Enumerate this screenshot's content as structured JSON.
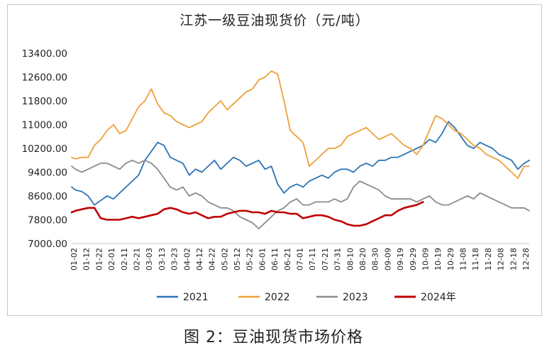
{
  "chart_data": {
    "type": "line",
    "title": "江苏一级豆油现货价（元/吨）",
    "xlabel": "",
    "ylabel": "",
    "ylim": [
      7000,
      13400
    ],
    "ytick_labels": [
      "13400.00",
      "12600.00",
      "11800.00",
      "11000.00",
      "10200.00",
      "9400.00",
      "8600.00",
      "7800.00",
      "7000.00"
    ],
    "ytick_values": [
      13400,
      12600,
      11800,
      11000,
      10200,
      9400,
      8600,
      7800,
      7000
    ],
    "xtick_labels": [
      "01-02",
      "01-12",
      "01-22",
      "02-01",
      "02-11",
      "02-21",
      "03-03",
      "03-13",
      "03-23",
      "04-02",
      "04-12",
      "04-22",
      "05-02",
      "05-12",
      "05-22",
      "06-01",
      "06-11",
      "06-21",
      "07-01",
      "07-11",
      "07-21",
      "07-31",
      "08-10",
      "08-20",
      "08-30",
      "09-09",
      "09-19",
      "09-29",
      "10-09",
      "10-19",
      "10-29",
      "11-08",
      "11-18",
      "11-28",
      "12-08",
      "12-18",
      "12-28"
    ],
    "grid": false,
    "legend_position": "bottom",
    "x_day_range": [
      2,
      364
    ],
    "series": [
      {
        "name": "2021",
        "color": "#2e74b5",
        "x": [
          2,
          5,
          10,
          15,
          20,
          25,
          30,
          35,
          40,
          45,
          50,
          55,
          60,
          65,
          70,
          75,
          80,
          85,
          90,
          95,
          100,
          105,
          110,
          115,
          120,
          125,
          130,
          135,
          140,
          145,
          150,
          155,
          160,
          165,
          170,
          175,
          180,
          185,
          190,
          195,
          200,
          205,
          210,
          215,
          220,
          225,
          230,
          235,
          240,
          245,
          250,
          255,
          260,
          265,
          270,
          275,
          280,
          285,
          290,
          295,
          300,
          305,
          310,
          315,
          320,
          325,
          330,
          335,
          340,
          345,
          350,
          355,
          360,
          364
        ],
        "y": [
          8900,
          8800,
          8750,
          8600,
          8300,
          8450,
          8600,
          8500,
          8700,
          8900,
          9100,
          9300,
          9800,
          10100,
          10400,
          10300,
          9900,
          9800,
          9700,
          9300,
          9500,
          9400,
          9600,
          9800,
          9500,
          9700,
          9900,
          9800,
          9600,
          9700,
          9800,
          9500,
          9600,
          9000,
          8700,
          8900,
          9000,
          8900,
          9100,
          9200,
          9300,
          9200,
          9400,
          9500,
          9500,
          9400,
          9600,
          9700,
          9600,
          9800,
          9800,
          9900,
          9900,
          10000,
          10100,
          10200,
          10300,
          10500,
          10400,
          10700,
          11100,
          10900,
          10600,
          10300,
          10200,
          10400,
          10300,
          10200,
          10000,
          9900,
          9800,
          9500,
          9700,
          9800
        ]
      },
      {
        "name": "2022",
        "color": "#eea03a",
        "x": [
          2,
          5,
          10,
          15,
          20,
          25,
          30,
          35,
          40,
          45,
          50,
          55,
          60,
          65,
          70,
          75,
          80,
          85,
          90,
          95,
          100,
          105,
          110,
          115,
          120,
          125,
          130,
          135,
          140,
          145,
          150,
          155,
          160,
          165,
          170,
          175,
          180,
          185,
          190,
          195,
          200,
          205,
          210,
          215,
          220,
          225,
          230,
          235,
          240,
          245,
          250,
          255,
          260,
          265,
          270,
          275,
          280,
          285,
          290,
          295,
          300,
          305,
          310,
          315,
          320,
          325,
          330,
          335,
          340,
          345,
          350,
          355,
          360,
          364
        ],
        "y": [
          9900,
          9850,
          9900,
          9900,
          10300,
          10500,
          10800,
          11000,
          10700,
          10800,
          11200,
          11600,
          11800,
          12200,
          11700,
          11400,
          11300,
          11100,
          11000,
          10900,
          11000,
          11100,
          11400,
          11600,
          11800,
          11500,
          11700,
          11900,
          12100,
          12200,
          12500,
          12600,
          12800,
          12700,
          11800,
          10800,
          10600,
          10400,
          9600,
          9800,
          10000,
          10200,
          10200,
          10300,
          10600,
          10700,
          10800,
          10900,
          10700,
          10500,
          10600,
          10700,
          10500,
          10300,
          10200,
          10000,
          10300,
          10800,
          11300,
          11200,
          11000,
          10800,
          10700,
          10500,
          10300,
          10200,
          10000,
          9900,
          9800,
          9600,
          9400,
          9200,
          9600,
          9600
        ]
      },
      {
        "name": "2023",
        "color": "#8c8c8c",
        "x": [
          2,
          5,
          10,
          15,
          20,
          25,
          30,
          35,
          40,
          45,
          50,
          55,
          60,
          65,
          70,
          75,
          80,
          85,
          90,
          95,
          100,
          105,
          110,
          115,
          120,
          125,
          130,
          135,
          140,
          145,
          150,
          155,
          160,
          165,
          170,
          175,
          180,
          185,
          190,
          195,
          200,
          205,
          210,
          215,
          220,
          225,
          230,
          235,
          240,
          245,
          250,
          255,
          260,
          265,
          270,
          275,
          280,
          285,
          290,
          295,
          300,
          305,
          310,
          315,
          320,
          325,
          330,
          335,
          340,
          345,
          350,
          355,
          360,
          364
        ],
        "y": [
          9600,
          9500,
          9400,
          9500,
          9600,
          9700,
          9700,
          9600,
          9500,
          9700,
          9800,
          9700,
          9800,
          9700,
          9500,
          9200,
          8900,
          8800,
          8900,
          8600,
          8700,
          8600,
          8400,
          8300,
          8200,
          8200,
          8100,
          7900,
          7800,
          7700,
          7500,
          7700,
          7900,
          8100,
          8200,
          8400,
          8500,
          8300,
          8300,
          8400,
          8400,
          8400,
          8500,
          8400,
          8500,
          8900,
          9100,
          9000,
          8900,
          8800,
          8600,
          8500,
          8500,
          8500,
          8500,
          8400,
          8500,
          8600,
          8400,
          8300,
          8300,
          8400,
          8500,
          8600,
          8500,
          8700,
          8600,
          8500,
          8400,
          8300,
          8200,
          8200,
          8200,
          8100
        ]
      },
      {
        "name": "2024年",
        "color": "#c00000",
        "x": [
          2,
          5,
          10,
          15,
          20,
          25,
          30,
          35,
          40,
          45,
          50,
          55,
          60,
          65,
          70,
          75,
          80,
          85,
          90,
          95,
          100,
          105,
          110,
          115,
          120,
          125,
          130,
          135,
          140,
          145,
          150,
          155,
          160,
          165,
          170,
          175,
          180,
          185,
          190,
          195,
          200,
          205,
          210,
          215,
          220,
          225,
          230,
          235,
          240,
          245,
          250,
          255,
          260,
          265,
          270,
          275,
          280
        ],
        "y": [
          8050,
          8100,
          8150,
          8200,
          8200,
          7850,
          7800,
          7800,
          7800,
          7850,
          7900,
          7850,
          7900,
          7950,
          8000,
          8150,
          8200,
          8150,
          8050,
          8000,
          8050,
          7950,
          7850,
          7900,
          7900,
          8000,
          8050,
          8100,
          8100,
          8050,
          8050,
          8000,
          8100,
          8050,
          8050,
          8000,
          8000,
          7850,
          7900,
          7950,
          7950,
          7900,
          7800,
          7750,
          7650,
          7600,
          7600,
          7650,
          7750,
          7850,
          7950,
          7950,
          8100,
          8200,
          8250,
          8300,
          8400
        ]
      }
    ]
  },
  "caption": "图 2：豆油现货市场价格"
}
